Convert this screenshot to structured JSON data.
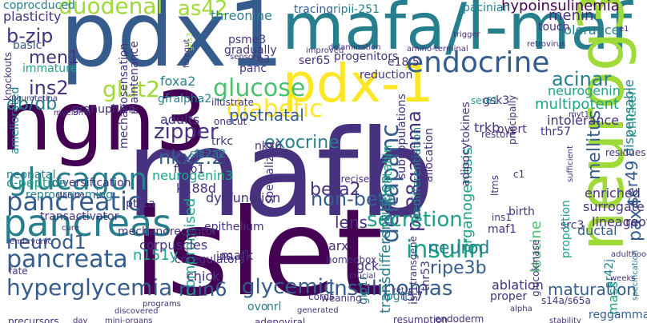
{
  "palette": {
    "dark_purple": "#440154",
    "indigo": "#46327e",
    "blue": "#365c8d",
    "teal_blue": "#277f8e",
    "teal": "#1fa187",
    "green": "#4ac16d",
    "lime": "#a0da39",
    "yellow": "#fde725"
  },
  "words": {
    "mafb": "mafb",
    "islet": "islet",
    "pdx1": "pdx1",
    "ngn3": "ngn3",
    "mafa_l_maf": "mafa/l-maf",
    "neurog3": "neurog3",
    "pdx_1": "pdx-1",
    "pancreas": "pancreas",
    "glucagon": "glucagon",
    "endocrine": "endocrine",
    "pancreatic": "pancreatic",
    "pancreata": "pancreata",
    "hyperglycemia": "hyperglycemia",
    "insulin": "insulin",
    "duodenal": "duodenal",
    "as42": "as42",
    "glut2": "glut2",
    "glucose": "glucose",
    "diabetic": "diabetic",
    "deltapanc": "deltapanc",
    "pa28gamma": "pa28gamma",
    "ins2": "ins2",
    "men1": "men1",
    "b_zip": "b-zip",
    "db_db": "db/db",
    "acinar": "acinar",
    "neurogenin": "neurogenin",
    "nkx2_2": "nkx2.2",
    "non_beta": "non-beta",
    "beta2": "beta2",
    "pax4": "pax4",
    "secretion": "secretion",
    "neurod1": "neurod1",
    "ripe3b": "ripe3b",
    "neurod": "neurod",
    "min6": "min6",
    "glycemic": "glycemic",
    "insulinomas": "insulinomas",
    "zipper": "zipper",
    "exocrine": "exocrine",
    "crystallin": "crystallin",
    "organogenesis": "organogenesis",
    "postnatal": "postnatal",
    "mellitus": "mellitus",
    "hypoinsulinemia": "hypoinsulinemia",
    "maturation": "maturation",
    "leucine": "leucine",
    "transdifferentiation": "transdifferentiation",
    "menin": "menin",
    "neurogenin3": "neurogenin3",
    "k188d": "k188d",
    "coprocduced": "coprocduced",
    "plasticity": "plasticity",
    "threonine": "threonine",
    "tracing": "tracing",
    "ripii_251": "ripii-251",
    "pacinian": "pacinian",
    "tolerance": "tolerance",
    "intolerance": "intolerance",
    "multipotent": "multipotent",
    "chicken": "chicken",
    "dispensable": "dispensable",
    "ser49": "ser49",
    "enriched": "enriched",
    "surrogate": "surrogate",
    "root": "root",
    "lineage": "lineage",
    "adulthood": "adulthood",
    "specification": "specification",
    "reggamma": "reggamma",
    "s14a_s65a": "s14a/s65a",
    "stability": "stability",
    "mass": "mass",
    "ar42j": "ar42j",
    "glucokinase": "glucokinase",
    "ductal": "ductal",
    "src3": "src3",
    "proportion": "proportion",
    "ablation": "ablation",
    "proper": "proper",
    "t57": "t57",
    "resumption": "resumption",
    "endoderm": "endoderm",
    "ovo": "ovo",
    "nrl": "nrl",
    "adenoviral": "adenoviral",
    "ipgtt": "ipgtt",
    "gck": "gck",
    "glp1r": "glp1r",
    "isl1": "isl1",
    "thr53": "thr53",
    "lens": "lens",
    "arx": "arx",
    "compromised": "compromised",
    "chick": "chick",
    "mafk": "mafk",
    "coregulators": "coregulators",
    "n151y": "n151y",
    "corpuscles": "corpuscles",
    "mechanoreceptor": "mechanoreceptor",
    "epithelium": "epithelium",
    "transactivator": "transactivator",
    "ptf1a": "ptf1a",
    "reprogramming": "reprogramming",
    "diversification": "diversification",
    "neonatal": "neonatal",
    "c_peptide": "c-peptide",
    "ameliorated": "ameliorated",
    "immature": "immature",
    "basic": "basic",
    "adults": "adults",
    "gfralpha2": "gfralpha2",
    "granuphilin": "granuphilin",
    "foxa2": "foxa2",
    "maintenance": "maintenance",
    "mechanosensation": "mechanosensation",
    "glis3": "glis3",
    "psme3": "psme3",
    "gradually": "gradually",
    "panc": "panc",
    "progenitors": "progenitors",
    "reduction": "reduction",
    "ser65": "ser65",
    "ser61": "ser61",
    "gsk3": "gsk3",
    "trkb": "trkb",
    "trkc": "trkc",
    "thr57": "thr57",
    "nkx6": "nkx6",
    "slc2a2": "slc2a2",
    "foxo1": "foxo1",
    "dysfunction": "dysfunction",
    "birth": "birth",
    "adipocytokines": "adipocytokines",
    "specialized": "specialized",
    "subpopulations": "subpopulations",
    "dedifferentiation": "dedifferentiation",
    "allocation": "allocation",
    "overt": "overt",
    "principally": "principally",
    "precisely": "precisely",
    "homeobox": "homeobox",
    "transgene": "transgene",
    "trigger": "trigger",
    "amino_terminal": "amino-terminal",
    "retrovirus": "retrovirus",
    "improved": "improved",
    "delamination": "delamination",
    "touch": "touch",
    "e1": "e1",
    "c1": "c1",
    "residues": "residues",
    "weeks": "weeks",
    "alpha": "alpha",
    "discovered": "discovered",
    "day": "day",
    "mini_organs": "mini-organs",
    "generated": "generated",
    "precursors": "precursors",
    "fate": "fate",
    "embryonic": "embryonic",
    "cure": "cure",
    "alanine": "alanine",
    "knockouts": "knockouts",
    "neurotetina": "neurotetina",
    "myeloma": "myeloma",
    "illustrate": "illustrate",
    "adults_tiny": "adults",
    "restore": "restore",
    "crucial": "crucial",
    "cords": "cords",
    "weaning": "weaning",
    "ret": "ret",
    "ins1": "ins1",
    "maf1": "maf1",
    "e18_5": "e18.5",
    "sensory": "sensory",
    "a3": "a3",
    "ins": "ins",
    "onecut": "onecut",
    "programs": "programs",
    "foregut": "foregut",
    "sufficient": "sufficient",
    "myt1": "myt1",
    "ltms": "ltms",
    "islet_lower": "islet"
  }
}
